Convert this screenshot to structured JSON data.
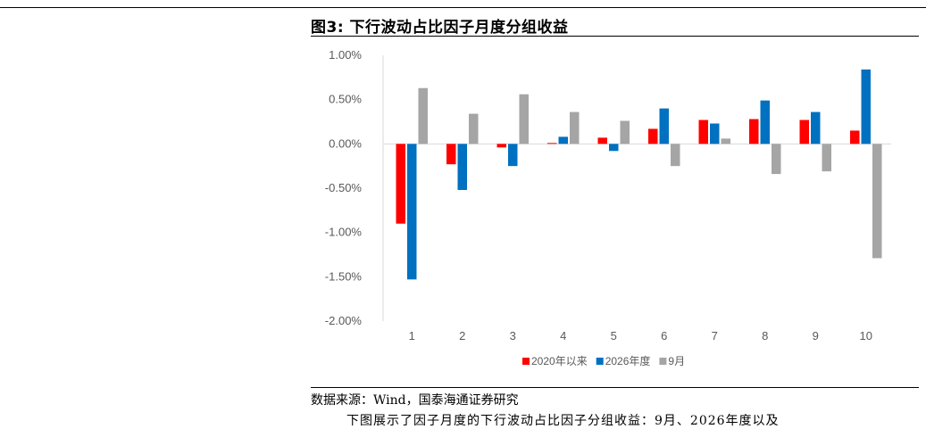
{
  "figure": {
    "title": "图3:  下行波动占比因子月度分组收益",
    "source": "数据来源：Wind，国泰海通证券研究",
    "body_fragment": "下图展示了因子月度的下行波动占比因子分组收益：9月、2026年度以及"
  },
  "chart_data": {
    "type": "bar",
    "categories": [
      "1",
      "2",
      "3",
      "4",
      "5",
      "6",
      "7",
      "8",
      "9",
      "10"
    ],
    "series": [
      {
        "name": "2020年以来",
        "color": "#FF0000",
        "values": [
          -0.9,
          -0.23,
          -0.04,
          0.01,
          0.07,
          0.17,
          0.27,
          0.28,
          0.27,
          0.15
        ]
      },
      {
        "name": "2026年度",
        "color": "#0070C0",
        "values": [
          -1.53,
          -0.52,
          -0.25,
          0.08,
          -0.08,
          0.4,
          0.23,
          0.49,
          0.36,
          0.84
        ]
      },
      {
        "name": "9月",
        "color": "#A5A5A5",
        "values": [
          0.63,
          0.34,
          0.56,
          0.36,
          0.26,
          -0.25,
          0.06,
          -0.34,
          -0.31,
          -1.29
        ]
      }
    ],
    "yticks": [
      "1.00%",
      "0.50%",
      "0.00%",
      "-0.50%",
      "-1.00%",
      "-1.50%",
      "-2.00%"
    ],
    "ylim": [
      -2.0,
      1.0
    ],
    "grid": false,
    "legend": "bottom"
  }
}
